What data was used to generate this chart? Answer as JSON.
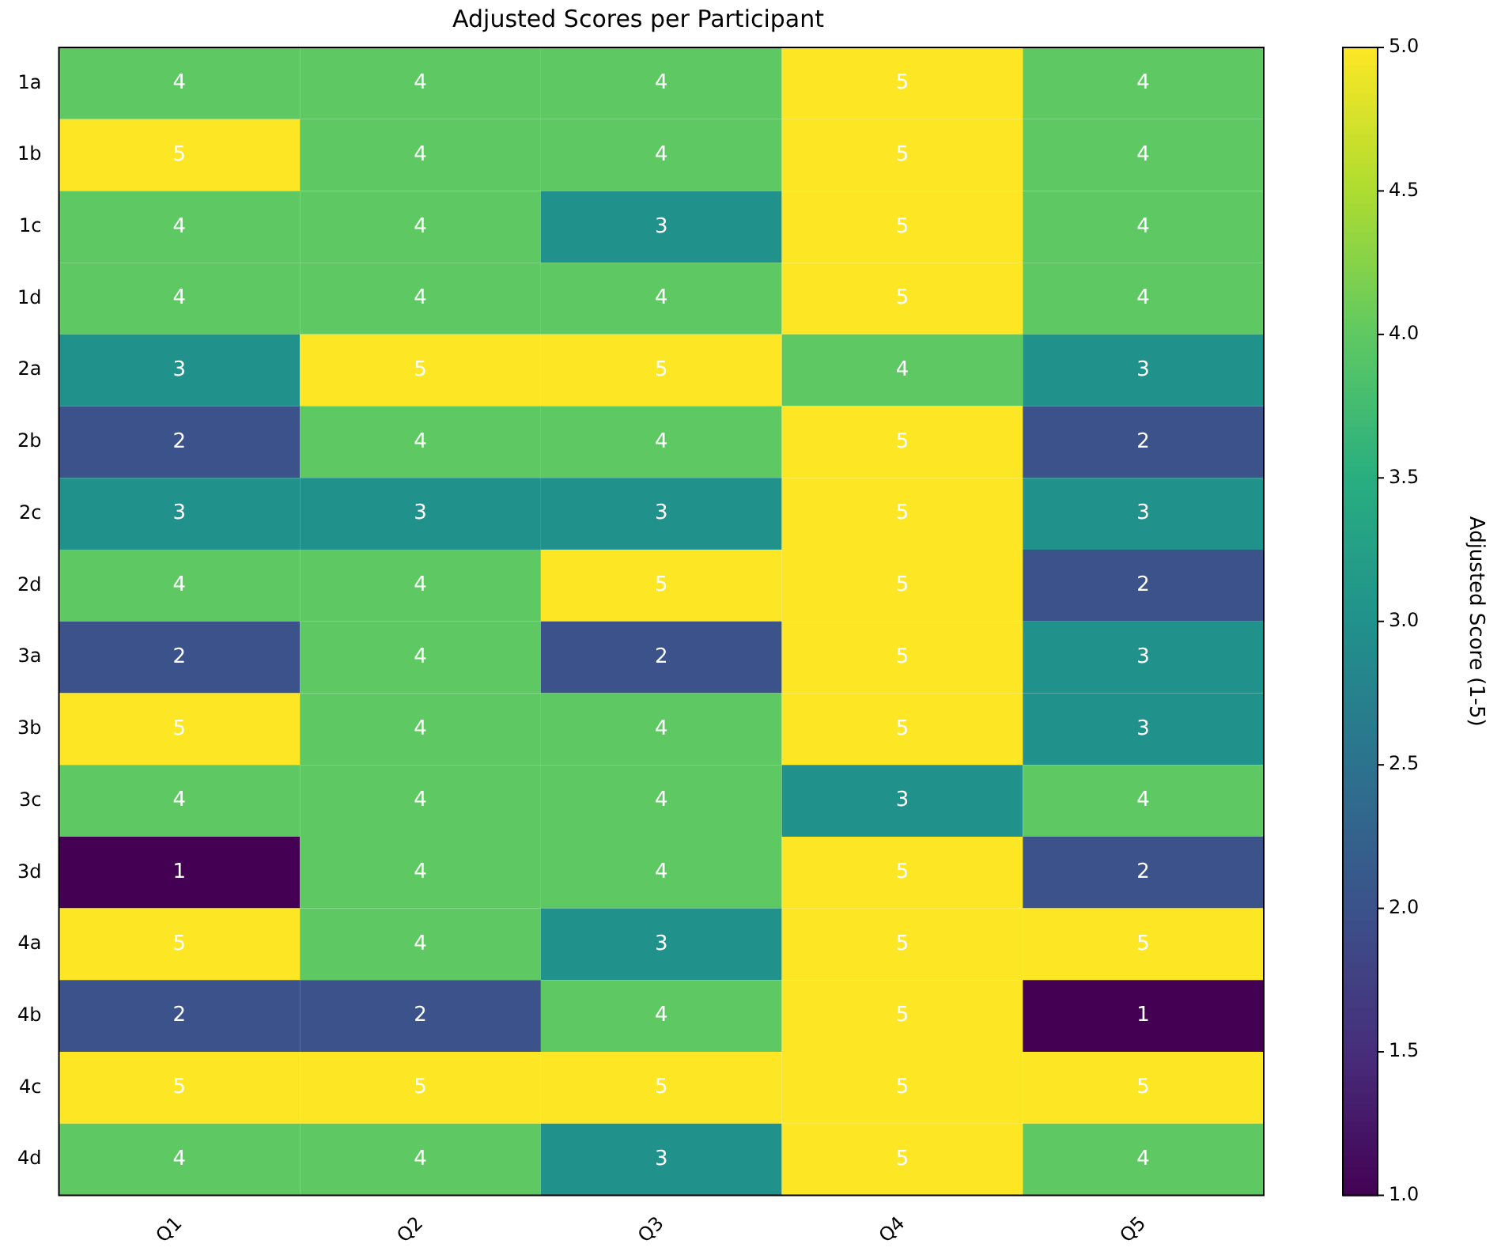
{
  "chart_data": {
    "type": "heatmap",
    "title": "Adjusted Scores per Participant",
    "clabel": "Adjusted Score (1-5)",
    "categories": [
      "Q1",
      "Q2",
      "Q3",
      "Q4",
      "Q5"
    ],
    "y_categories": [
      "1a",
      "1b",
      "1c",
      "1d",
      "2a",
      "2b",
      "2c",
      "2d",
      "3a",
      "3b",
      "3c",
      "3d",
      "4a",
      "4b",
      "4c",
      "4d"
    ],
    "cells": [
      [
        4,
        4,
        4,
        5,
        4
      ],
      [
        5,
        4,
        4,
        5,
        4
      ],
      [
        4,
        4,
        3,
        5,
        4
      ],
      [
        4,
        4,
        4,
        5,
        4
      ],
      [
        3,
        5,
        5,
        4,
        3
      ],
      [
        2,
        4,
        4,
        5,
        2
      ],
      [
        3,
        3,
        3,
        5,
        3
      ],
      [
        4,
        4,
        5,
        5,
        2
      ],
      [
        2,
        4,
        2,
        5,
        3
      ],
      [
        5,
        4,
        4,
        5,
        3
      ],
      [
        4,
        4,
        4,
        3,
        4
      ],
      [
        1,
        4,
        4,
        5,
        2
      ],
      [
        5,
        4,
        3,
        5,
        5
      ],
      [
        2,
        2,
        4,
        5,
        1
      ],
      [
        5,
        5,
        5,
        5,
        5
      ],
      [
        4,
        4,
        3,
        5,
        4
      ]
    ],
    "clim": [
      1,
      5
    ],
    "cticks": [
      {
        "value": 1,
        "label": "1.0"
      },
      {
        "value": 1.5,
        "label": "1.5"
      },
      {
        "value": 2,
        "label": "2.0"
      },
      {
        "value": 2.5,
        "label": "2.5"
      },
      {
        "value": 3,
        "label": "3.0"
      },
      {
        "value": 3.5,
        "label": "3.5"
      },
      {
        "value": 4,
        "label": "4.0"
      },
      {
        "value": 4.5,
        "label": "4.5"
      },
      {
        "value": 5,
        "label": "5.0"
      }
    ],
    "data_labels": true
  }
}
